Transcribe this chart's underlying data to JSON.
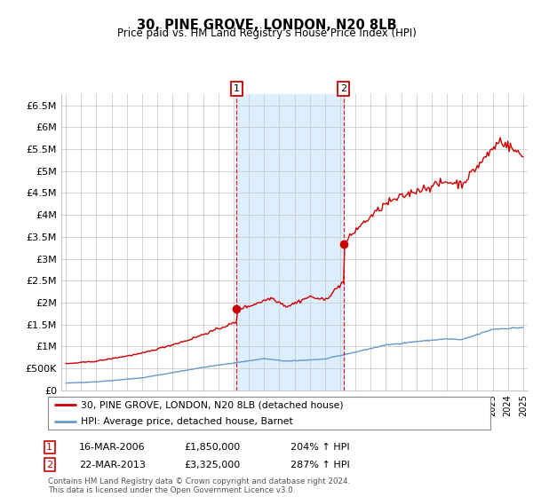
{
  "title": "30, PINE GROVE, LONDON, N20 8LB",
  "subtitle": "Price paid vs. HM Land Registry's House Price Index (HPI)",
  "bg_color": "#ffffff",
  "plot_bg_color": "#ffffff",
  "highlight_color": "#ddeeff",
  "red_line_color": "#cc0000",
  "blue_line_color": "#6699cc",
  "ylim": [
    0,
    6750000
  ],
  "ytick_vals": [
    0,
    500000,
    1000000,
    1500000,
    2000000,
    2500000,
    3000000,
    3500000,
    4000000,
    4500000,
    5000000,
    5500000,
    6000000,
    6500000
  ],
  "ytick_labels": [
    "£0",
    "£500K",
    "£1M",
    "£1.5M",
    "£2M",
    "£2.5M",
    "£3M",
    "£3.5M",
    "£4M",
    "£4.5M",
    "£5M",
    "£5.5M",
    "£6M",
    "£6.5M"
  ],
  "xlim_start": 1994.7,
  "xlim_end": 2025.3,
  "sale1_x": 2006.21,
  "sale1_y": 1850000,
  "sale2_x": 2013.22,
  "sale2_y": 3325000,
  "footer": "Contains HM Land Registry data © Crown copyright and database right 2024.\nThis data is licensed under the Open Government Licence v3.0.",
  "legend_line1": "30, PINE GROVE, LONDON, N20 8LB (detached house)",
  "legend_line2": "HPI: Average price, detached house, Barnet",
  "annotation1_date": "16-MAR-2006",
  "annotation1_price": "£1,850,000",
  "annotation1_hpi": "204% ↑ HPI",
  "annotation2_date": "22-MAR-2013",
  "annotation2_price": "£3,325,000",
  "annotation2_hpi": "287% ↑ HPI"
}
